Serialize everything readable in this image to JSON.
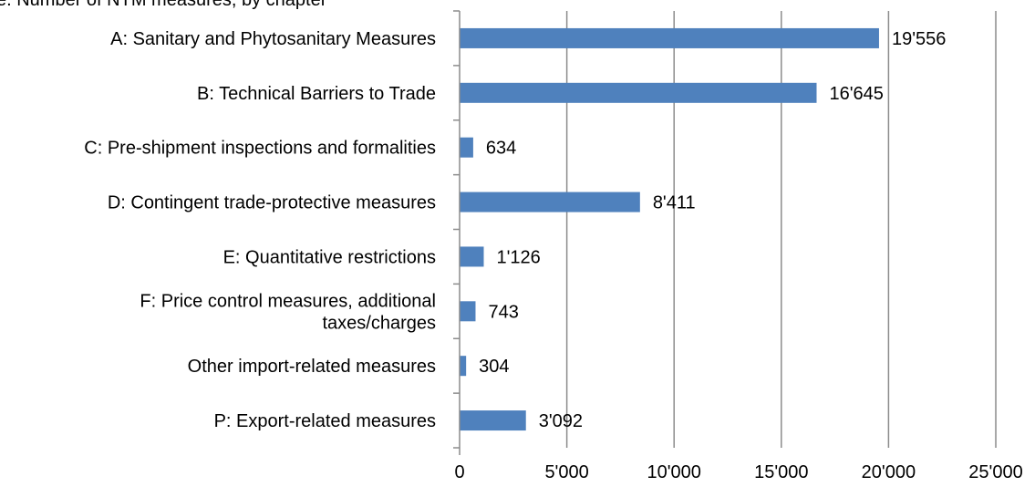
{
  "chart_data": {
    "type": "bar",
    "orientation": "horizontal",
    "title_fragment": "e. Number of NTM measures, by chapter",
    "categories": [
      [
        "A: Sanitary and Phytosanitary Measures"
      ],
      [
        "B: Technical Barriers to Trade"
      ],
      [
        "C: Pre-shipment inspections and formalities"
      ],
      [
        "D: Contingent trade-protective measures"
      ],
      [
        "E: Quantitative restrictions"
      ],
      [
        "F: Price control measures, additional",
        "taxes/charges"
      ],
      [
        "Other import-related measures"
      ],
      [
        "P: Export-related measures"
      ]
    ],
    "values": [
      19556,
      16645,
      634,
      8411,
      1126,
      743,
      304,
      3092
    ],
    "value_labels": [
      "19'556",
      "16'645",
      "634",
      "8'411",
      "1'126",
      "743",
      "304",
      "3'092"
    ],
    "xlim": [
      0,
      25000
    ],
    "xticks": [
      0,
      5000,
      10000,
      15000,
      20000,
      25000
    ],
    "xtick_labels": [
      "0",
      "5'000",
      "10'000",
      "15'000",
      "20'000",
      "25'000"
    ],
    "grid": "vertical",
    "legend": "none",
    "bar_color": "#4f81bd",
    "grid_color": "#8c8c8c",
    "axis_color": "#8c8c8c"
  }
}
